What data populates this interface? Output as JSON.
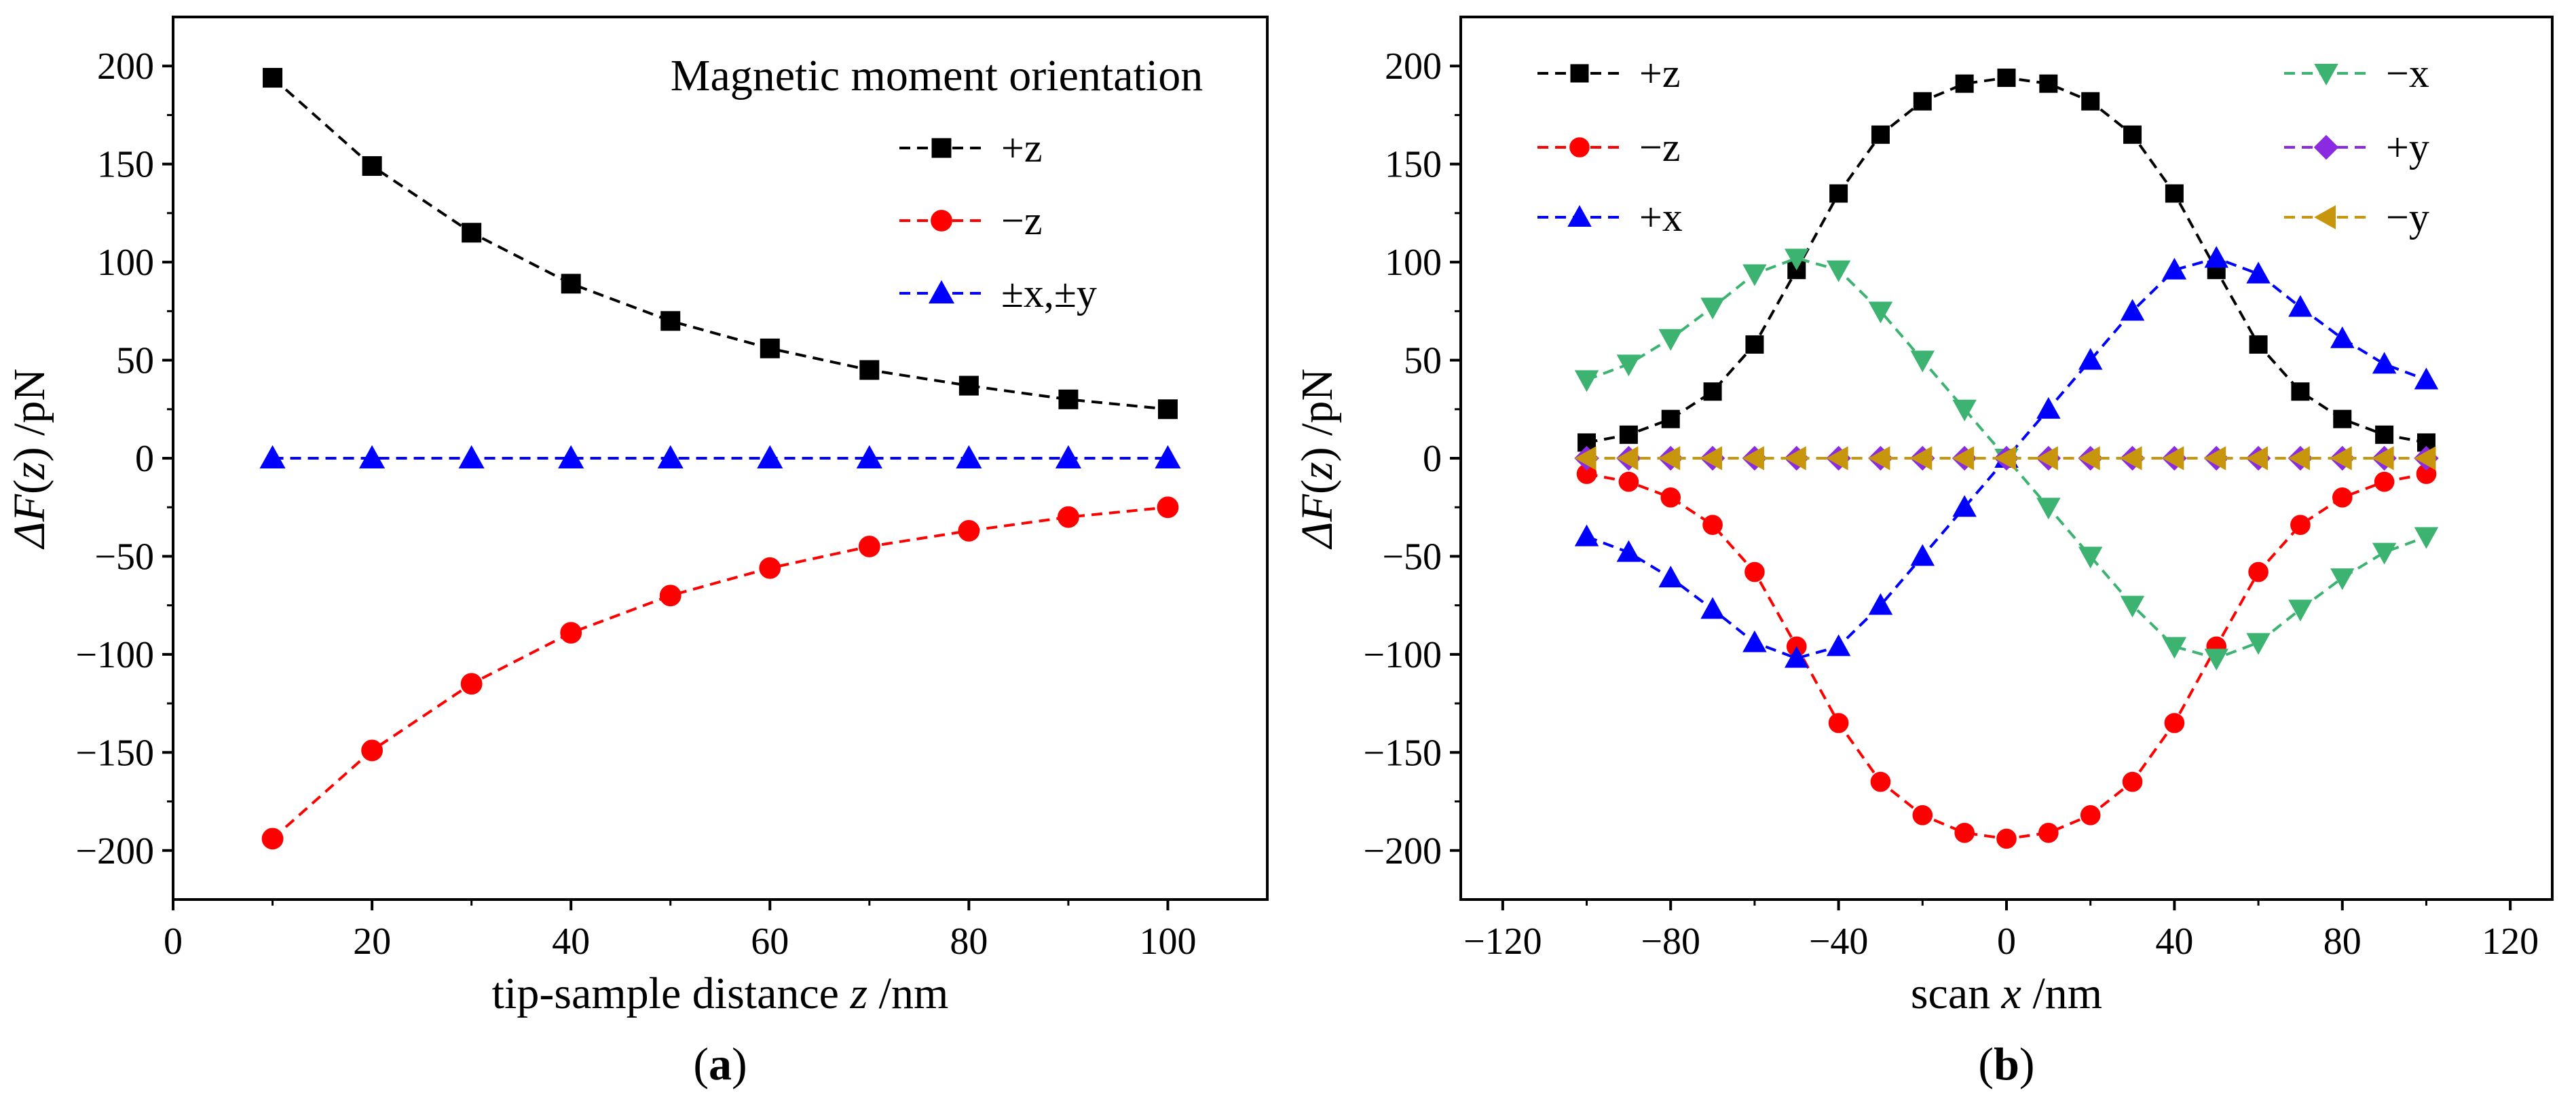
{
  "chart_data": [
    {
      "type": "line",
      "panel_label": "a",
      "title": "",
      "xlabel": "tip-sample distance z /nm",
      "ylabel": "ΔF(z) /pN",
      "xlim": [
        0,
        110
      ],
      "ylim": [
        -225,
        225
      ],
      "xticks": [
        0,
        20,
        40,
        60,
        80,
        100
      ],
      "yticks": [
        -200,
        -150,
        -100,
        -50,
        0,
        50,
        100,
        150,
        200
      ],
      "legend_title": "Magnetic moment orientation",
      "legend_position": "top-right",
      "x": [
        10,
        20,
        30,
        40,
        50,
        60,
        70,
        80,
        90,
        100
      ],
      "series": [
        {
          "name": "+z",
          "color": "#000000",
          "marker": "square",
          "values": [
            194,
            149,
            115,
            89,
            70,
            56,
            45,
            37,
            30,
            25
          ]
        },
        {
          "name": "−z",
          "color": "#ff0000",
          "marker": "circle",
          "values": [
            -194,
            -149,
            -115,
            -89,
            -70,
            -56,
            -45,
            -37,
            -30,
            -25
          ]
        },
        {
          "name": "±x,±y",
          "color": "#0000ff",
          "marker": "triangle-up",
          "values": [
            0,
            0,
            0,
            0,
            0,
            0,
            0,
            0,
            0,
            0
          ]
        }
      ]
    },
    {
      "type": "line",
      "panel_label": "b",
      "title": "",
      "xlabel": "scan x /nm",
      "ylabel": "ΔF(z) /pN",
      "xlim": [
        -130,
        130
      ],
      "ylim": [
        -225,
        225
      ],
      "xticks": [
        -120,
        -80,
        -40,
        0,
        40,
        80,
        120
      ],
      "yticks": [
        -200,
        -150,
        -100,
        -50,
        0,
        50,
        100,
        150,
        200
      ],
      "legend_position": "top",
      "x": [
        -100,
        -90,
        -80,
        -70,
        -60,
        -50,
        -40,
        -30,
        -20,
        -10,
        0,
        10,
        20,
        30,
        40,
        50,
        60,
        70,
        80,
        90,
        100
      ],
      "series": [
        {
          "name": "+z",
          "color": "#000000",
          "marker": "square",
          "values": [
            8,
            12,
            20,
            34,
            58,
            96,
            135,
            165,
            182,
            191,
            194,
            191,
            182,
            165,
            135,
            96,
            58,
            34,
            20,
            12,
            8
          ]
        },
        {
          "name": "−z",
          "color": "#ff0000",
          "marker": "circle",
          "values": [
            -8,
            -12,
            -20,
            -34,
            -58,
            -96,
            -135,
            -165,
            -182,
            -191,
            -194,
            -191,
            -182,
            -165,
            -135,
            -96,
            -58,
            -34,
            -20,
            -12,
            -8
          ]
        },
        {
          "name": "+x",
          "color": "#0000ff",
          "marker": "triangle-up",
          "values": [
            -40,
            -48,
            -61,
            -77,
            -94,
            -102,
            -96,
            -75,
            -50,
            -25,
            0,
            25,
            50,
            75,
            96,
            102,
            94,
            77,
            61,
            48,
            40
          ]
        },
        {
          "name": "−x",
          "color": "#3cb371",
          "marker": "triangle-down",
          "values": [
            40,
            48,
            61,
            77,
            94,
            102,
            96,
            75,
            50,
            25,
            0,
            -25,
            -50,
            -75,
            -96,
            -102,
            -94,
            -77,
            -61,
            -48,
            -40
          ]
        },
        {
          "name": "+y",
          "color": "#8a2be2",
          "marker": "diamond",
          "values": [
            0,
            0,
            0,
            0,
            0,
            0,
            0,
            0,
            0,
            0,
            0,
            0,
            0,
            0,
            0,
            0,
            0,
            0,
            0,
            0,
            0
          ]
        },
        {
          "name": "−y",
          "color": "#c8960c",
          "marker": "triangle-left",
          "values": [
            0,
            0,
            0,
            0,
            0,
            0,
            0,
            0,
            0,
            0,
            0,
            0,
            0,
            0,
            0,
            0,
            0,
            0,
            0,
            0,
            0
          ]
        }
      ]
    }
  ]
}
